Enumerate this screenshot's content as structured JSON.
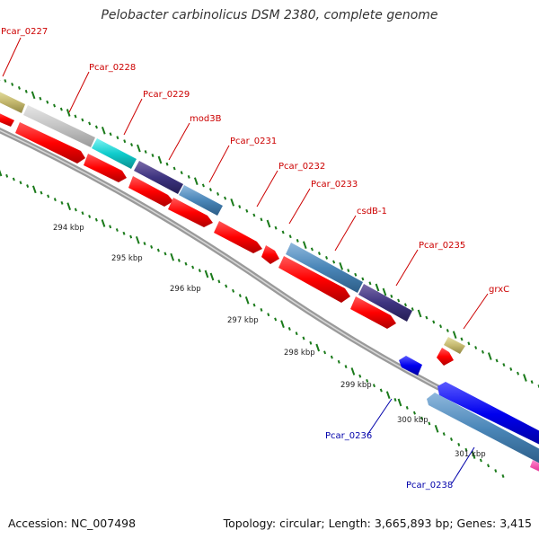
{
  "title": "Pelobacter carbinolicus DSM 2380, complete genome",
  "footer": {
    "accession": "Accession: NC_007498",
    "summary": "Topology: circular; Length: 3,665,893 bp; Genes: 3,415"
  },
  "colors": {
    "background": "#ffffff",
    "backbone": "#8a8a8a",
    "tick": "#1a7a1a",
    "label_red": "#cc0000",
    "label_blue": "#0000aa"
  },
  "scale_labels": [
    "294 kbp",
    "295 kbp",
    "296 kbp",
    "297 kbp",
    "298 kbp",
    "299 kbp",
    "300 kbp",
    "301 kbp"
  ],
  "gene_labels": [
    {
      "text": "Pcar_0227",
      "color": "red"
    },
    {
      "text": "Pcar_0228",
      "color": "red"
    },
    {
      "text": "Pcar_0229",
      "color": "red"
    },
    {
      "text": "mod3B",
      "color": "red"
    },
    {
      "text": "Pcar_0231",
      "color": "red"
    },
    {
      "text": "Pcar_0232",
      "color": "red"
    },
    {
      "text": "Pcar_0233",
      "color": "red"
    },
    {
      "text": "csdB-1",
      "color": "red"
    },
    {
      "text": "Pcar_0235",
      "color": "red"
    },
    {
      "text": "grxC",
      "color": "red"
    },
    {
      "text": "Pcar_0236",
      "color": "blue"
    },
    {
      "text": "Pcar_0238",
      "color": "blue"
    }
  ]
}
